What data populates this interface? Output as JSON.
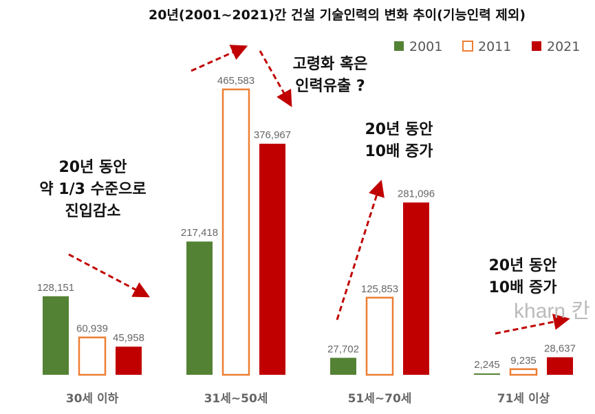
{
  "chart_data": {
    "type": "bar",
    "title": "20년(2001~2021)간 건설 기술인력의 변화 추이(기능인력 제외)",
    "categories": [
      "30세 이하",
      "31세~50세",
      "51세~70세",
      "71세 이상"
    ],
    "series": [
      {
        "name": "2001",
        "color": "#548235",
        "style": "filled",
        "values": [
          128151,
          217418,
          27702,
          2245
        ],
        "labels": [
          "128,151",
          "217,418",
          "27,702",
          "2,245"
        ]
      },
      {
        "name": "2011",
        "color": "#ED7D31",
        "style": "outline",
        "values": [
          60939,
          465583,
          125853,
          9235
        ],
        "labels": [
          "60,939",
          "465,583",
          "125,853",
          "9,235"
        ]
      },
      {
        "name": "2021",
        "color": "#C00000",
        "style": "filled",
        "values": [
          45958,
          376967,
          281096,
          28637
        ],
        "labels": [
          "45,958",
          "376,967",
          "281,096",
          "28,637"
        ]
      }
    ],
    "ylim": [
      0,
      470000
    ],
    "grid": false,
    "legend_position": "top-right",
    "annotations": [
      {
        "lines": [
          "20년 동안",
          "약 1/3 수준으로",
          "진입감소"
        ]
      },
      {
        "lines": [
          "고령화 혹은",
          "인력유출 ?"
        ]
      },
      {
        "lines": [
          "20년 동안",
          "10배 증가"
        ]
      },
      {
        "lines": [
          "20년 동안",
          "10배 증가"
        ]
      }
    ],
    "watermark": "kharn 칸"
  }
}
